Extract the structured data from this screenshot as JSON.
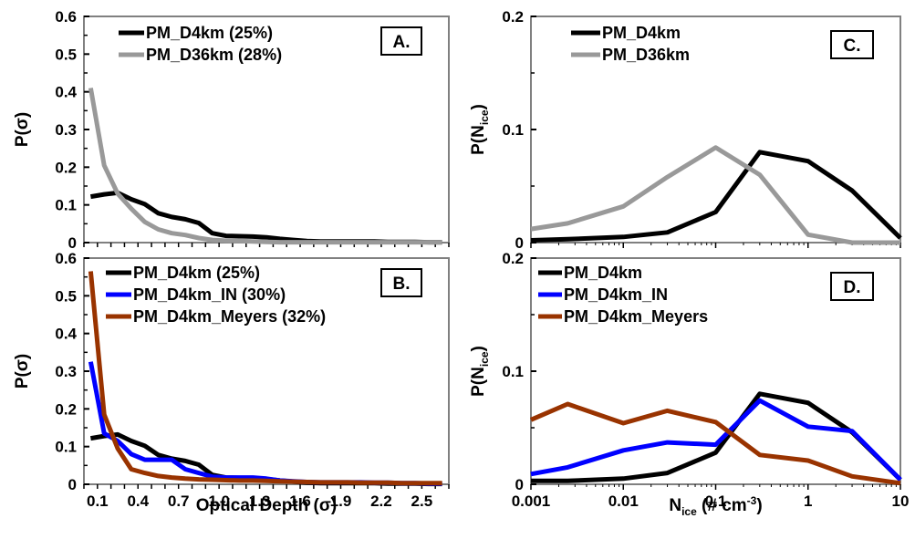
{
  "chart_data": [
    {
      "type": "line",
      "panel": "A.",
      "xlabel": "",
      "ylabel": "P(σ)",
      "ylim": [
        0,
        0.6
      ],
      "xlim": [
        0,
        2.7
      ],
      "yticks": [
        "0",
        "0.1",
        "0.2",
        "0.3",
        "0.4",
        "0.5",
        "0.6"
      ],
      "x": [
        0.05,
        0.15,
        0.25,
        0.35,
        0.45,
        0.55,
        0.65,
        0.75,
        0.85,
        0.95,
        1.05,
        1.15,
        1.25,
        1.35,
        1.45,
        1.55,
        1.65,
        1.75,
        1.85,
        1.95,
        2.05,
        2.15,
        2.25,
        2.35,
        2.45,
        2.55,
        2.65
      ],
      "series": [
        {
          "name": "PM_D4km (25%)",
          "color": "#000000",
          "values": [
            0.122,
            0.128,
            0.132,
            0.115,
            0.102,
            0.078,
            0.068,
            0.062,
            0.052,
            0.025,
            0.018,
            0.017,
            0.016,
            0.014,
            0.01,
            0.007,
            0.004,
            0.003,
            0.003,
            0.003,
            0.003,
            0.003,
            0.002,
            0.002,
            0.002,
            0.001,
            0.001
          ]
        },
        {
          "name": "PM_D36km (28%)",
          "color": "#999999",
          "values": [
            0.41,
            0.205,
            0.13,
            0.09,
            0.055,
            0.035,
            0.025,
            0.02,
            0.012,
            0.007,
            0.005,
            0.004,
            0.003,
            0.002,
            0.001,
            0.001,
            0.001,
            0.001,
            0.001,
            0.001,
            0.001,
            0.001,
            0.001,
            0.001,
            0.001,
            0.001,
            0.001
          ]
        }
      ]
    },
    {
      "type": "line",
      "panel": "B.",
      "xlabel": "Optical Depth (σ)",
      "ylabel": "P(σ)",
      "ylim": [
        0,
        0.6
      ],
      "xlim": [
        0,
        2.7
      ],
      "yticks": [
        "0",
        "0.1",
        "0.2",
        "0.3",
        "0.4",
        "0.5",
        "0.6"
      ],
      "xticks": [
        "0.1",
        "0.4",
        "0.7",
        "1.0",
        "1.3",
        "1.6",
        "1.9",
        "2.2",
        "2.5"
      ],
      "x": [
        0.05,
        0.15,
        0.25,
        0.35,
        0.45,
        0.55,
        0.65,
        0.75,
        0.85,
        0.95,
        1.05,
        1.15,
        1.25,
        1.35,
        1.45,
        1.55,
        1.65,
        1.75,
        1.85,
        1.95,
        2.05,
        2.15,
        2.25,
        2.35,
        2.45,
        2.55,
        2.65
      ],
      "series": [
        {
          "name": "PM_D4km (25%)",
          "color": "#000000",
          "values": [
            0.122,
            0.128,
            0.132,
            0.115,
            0.102,
            0.078,
            0.068,
            0.062,
            0.052,
            0.025,
            0.018,
            0.017,
            0.016,
            0.014,
            0.01,
            0.007,
            0.004,
            0.003,
            0.003,
            0.003,
            0.003,
            0.003,
            0.002,
            0.002,
            0.002,
            0.001,
            0.001
          ]
        },
        {
          "name": "PM_D4km_IN (30%)",
          "color": "#0000ff",
          "values": [
            0.325,
            0.135,
            0.115,
            0.08,
            0.065,
            0.065,
            0.065,
            0.04,
            0.03,
            0.02,
            0.018,
            0.018,
            0.018,
            0.015,
            0.01,
            0.008,
            0.006,
            0.005,
            0.005,
            0.005,
            0.005,
            0.004,
            0.004,
            0.003,
            0.003,
            0.002,
            0.002
          ]
        },
        {
          "name": "PM_D4km_Meyers (32%)",
          "color": "#993300",
          "values": [
            0.565,
            0.185,
            0.095,
            0.04,
            0.03,
            0.022,
            0.018,
            0.015,
            0.013,
            0.012,
            0.011,
            0.01,
            0.01,
            0.009,
            0.008,
            0.007,
            0.006,
            0.005,
            0.005,
            0.005,
            0.004,
            0.004,
            0.004,
            0.003,
            0.003,
            0.003,
            0.003
          ]
        }
      ]
    },
    {
      "type": "line",
      "panel": "C.",
      "xlabel": "",
      "ylabel": "P(N",
      "ylabel_sub": "ice",
      "ylabel_end": ")",
      "xscale": "log",
      "xlim": [
        0.001,
        10
      ],
      "ylim": [
        0,
        0.2
      ],
      "yticks": [
        "0",
        "0.1",
        "0.2"
      ],
      "x": [
        0.001,
        0.0025,
        0.01,
        0.03,
        0.1,
        0.3,
        1,
        3,
        10
      ],
      "series": [
        {
          "name": "PM_D4km",
          "color": "#000000",
          "values": [
            0.002,
            0.003,
            0.005,
            0.009,
            0.027,
            0.08,
            0.072,
            0.046,
            0.004
          ]
        },
        {
          "name": "PM_D36km",
          "color": "#999999",
          "values": [
            0.012,
            0.017,
            0.032,
            0.058,
            0.084,
            0.06,
            0.007,
            0.0,
            0.0
          ]
        }
      ]
    },
    {
      "type": "line",
      "panel": "D.",
      "xlabel": "N",
      "xlabel_sub": "ice",
      "xlabel_end": " (# cm",
      "xlabel_sup": "-3",
      "xlabel_close": ")",
      "ylabel": "P(N",
      "ylabel_sub": "ice",
      "ylabel_end": ")",
      "xscale": "log",
      "xlim": [
        0.001,
        10
      ],
      "ylim": [
        0,
        0.2
      ],
      "yticks": [
        "0",
        "0.1",
        "0.2"
      ],
      "xticks": [
        "0.001",
        "0.01",
        "0.1",
        "1",
        "10"
      ],
      "x": [
        0.001,
        0.0025,
        0.01,
        0.03,
        0.1,
        0.3,
        1,
        3,
        10
      ],
      "series": [
        {
          "name": "PM_D4km",
          "color": "#000000",
          "values": [
            0.003,
            0.003,
            0.005,
            0.01,
            0.028,
            0.08,
            0.072,
            0.046,
            0.004
          ]
        },
        {
          "name": "PM_D4km_IN",
          "color": "#0000ff",
          "values": [
            0.009,
            0.015,
            0.03,
            0.037,
            0.035,
            0.074,
            0.051,
            0.047,
            0.004
          ]
        },
        {
          "name": "PM_D4km_Meyers",
          "color": "#993300",
          "values": [
            0.057,
            0.071,
            0.054,
            0.065,
            0.055,
            0.026,
            0.021,
            0.007,
            0.001
          ]
        }
      ]
    }
  ]
}
